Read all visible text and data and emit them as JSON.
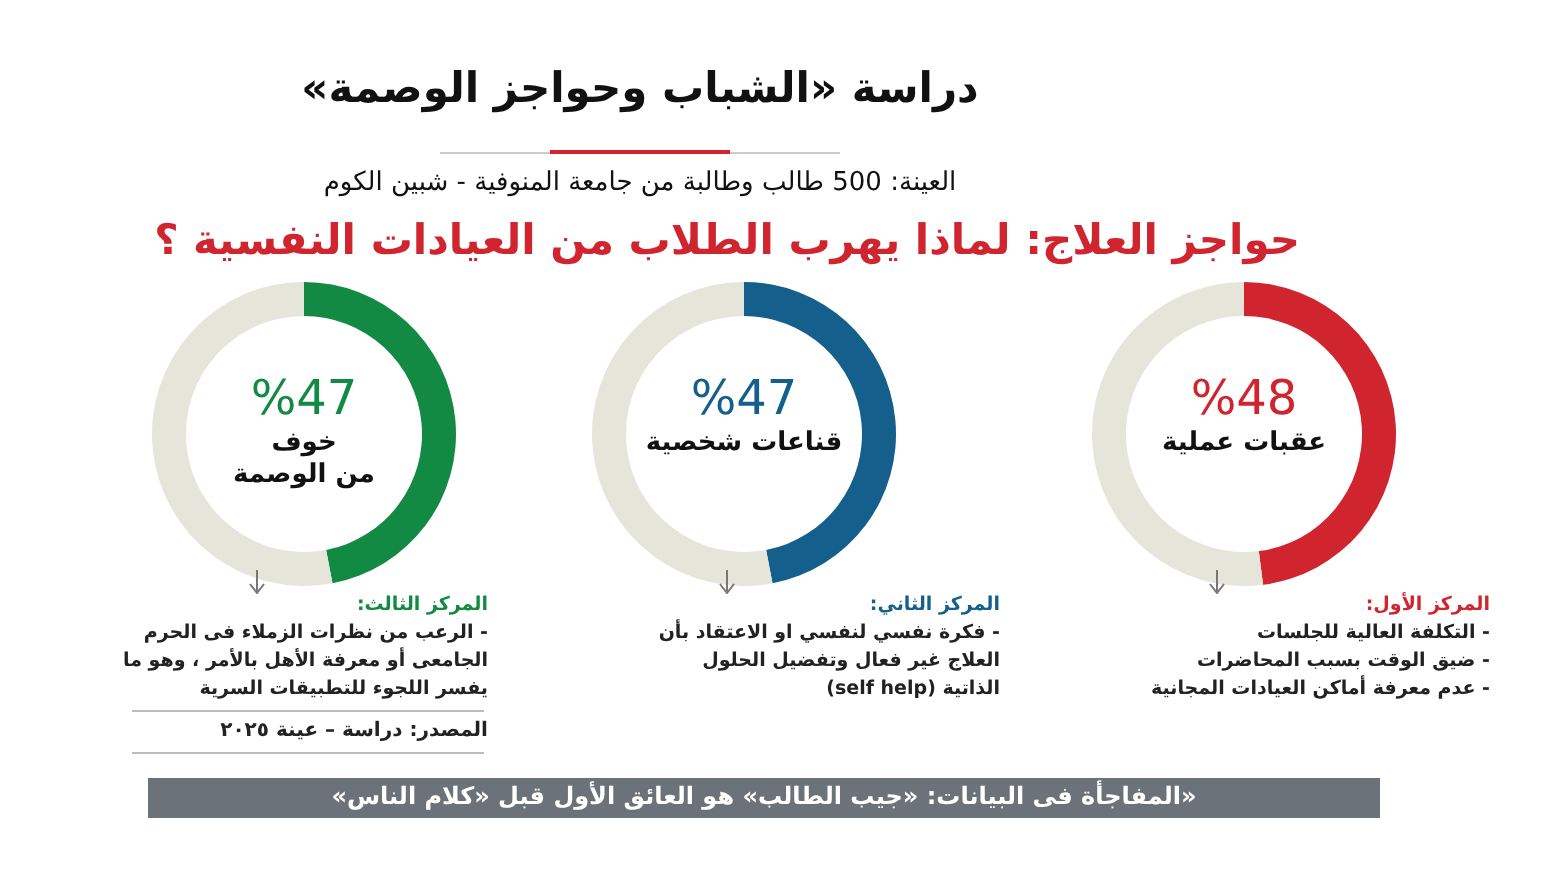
{
  "chart_data": [
    {
      "type": "donut",
      "categories": [
        "عقبات عملية",
        null
      ],
      "values": [
        48,
        52
      ],
      "colors": [
        "#d0252f",
        "#e6e5da"
      ],
      "value_labels": [
        "%48",
        null
      ],
      "annotations": [
        "حواجز العلاج: لماذا يهرب الطلاب من العيادات النفسية ؟",
        "المركز الأول:",
        "- التكلفة العالية للجلسات",
        "- ضيق الوقت بسبب المحاضرات",
        "- عدم معرفة أماكن العيادات المجانية"
      ]
    },
    {
      "type": "donut",
      "title": "دراسة «الشباب وحواجز الوصمة»",
      "subtitle": "العينة: 500 طالب وطالبة من جامعة المنوفية - شبين الكوم",
      "categories": [
        "قناعات شخصية",
        null
      ],
      "values": [
        47,
        53
      ],
      "colors": [
        "#155f8c",
        "#e6e5da"
      ],
      "value_labels": [
        "%47",
        null
      ],
      "annotations": [
        "المركز الثاني:",
        "- فكرة نفسي لنفسي او الاعتقاد بأن",
        "العلاج غير فعال وتفضيل الحلول",
        "الذاتية (self help)"
      ]
    },
    {
      "type": "donut",
      "categories": [
        "خوف\nمن الوصمة",
        null
      ],
      "values": [
        47,
        53
      ],
      "colors": [
        "#138a43",
        "#e6e5da"
      ],
      "value_labels": [
        "%47",
        null
      ],
      "annotations": [
        "المركز الثالث:",
        "- الرعب من نظرات الزملاء فى الحرم",
        "الجامعى أو معرفة الأهل بالأمر ، وهو ما",
        "يفسر اللجوء للتطبيقات السرية",
        "المصدر: دراسة – عينة ٢٠٢٥",
        "«المفاجأة فى البيانات: «جيب الطالب» هو العائق الأول قبل «كلام الناس»"
      ]
    }
  ]
}
